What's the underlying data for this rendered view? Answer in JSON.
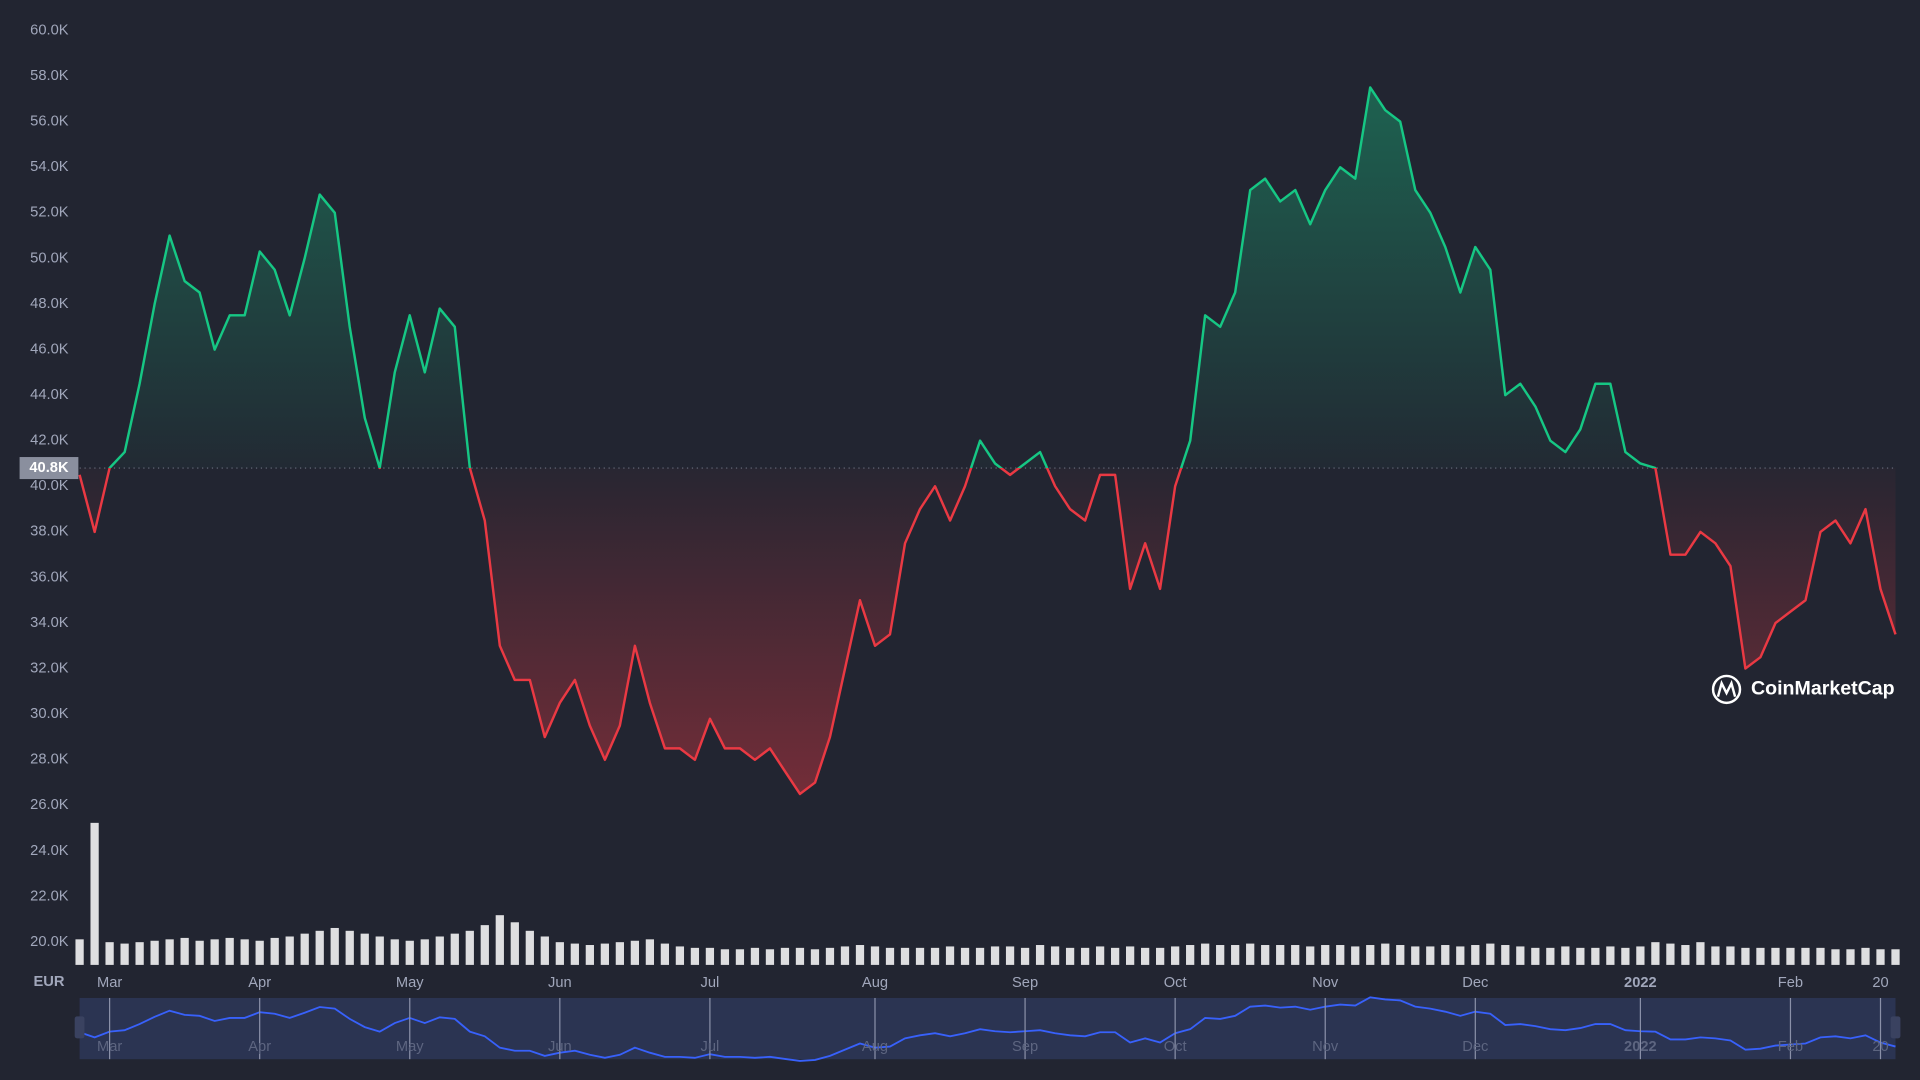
{
  "chart_data": {
    "type": "line",
    "currency": "EUR",
    "watermark": "CoinMarketCap",
    "colors": {
      "up": "#16c784",
      "down": "#ea3943",
      "volume": "#ffffff",
      "navigator": "#3861fb"
    },
    "grid": false,
    "baseline": {
      "value": 40800,
      "label": "40.8K"
    },
    "ylim": [
      19000,
      60800
    ],
    "yticks": [
      {
        "value": 20000,
        "label": "20.0K"
      },
      {
        "value": 22000,
        "label": "22.0K"
      },
      {
        "value": 24000,
        "label": "24.0K"
      },
      {
        "value": 26000,
        "label": "26.0K"
      },
      {
        "value": 28000,
        "label": "28.0K"
      },
      {
        "value": 30000,
        "label": "30.0K"
      },
      {
        "value": 32000,
        "label": "32.0K"
      },
      {
        "value": 34000,
        "label": "34.0K"
      },
      {
        "value": 36000,
        "label": "36.0K"
      },
      {
        "value": 38000,
        "label": "38.0K"
      },
      {
        "value": 40000,
        "label": "40.0K"
      },
      {
        "value": 42000,
        "label": "42.0K"
      },
      {
        "value": 44000,
        "label": "44.0K"
      },
      {
        "value": 46000,
        "label": "46.0K"
      },
      {
        "value": 48000,
        "label": "48.0K"
      },
      {
        "value": 50000,
        "label": "50.0K"
      },
      {
        "value": 52000,
        "label": "52.0K"
      },
      {
        "value": 54000,
        "label": "54.0K"
      },
      {
        "value": 56000,
        "label": "56.0K"
      },
      {
        "value": 58000,
        "label": "58.0K"
      },
      {
        "value": 60000,
        "label": "60.0K"
      }
    ],
    "y2lim": [
      0,
      100
    ],
    "categories": [
      null,
      null,
      "Mar",
      null,
      null,
      null,
      null,
      null,
      null,
      null,
      null,
      null,
      "Apr",
      null,
      null,
      null,
      null,
      null,
      null,
      null,
      null,
      null,
      "May",
      null,
      null,
      null,
      null,
      null,
      null,
      null,
      null,
      null,
      "Jun",
      null,
      null,
      null,
      null,
      null,
      null,
      null,
      null,
      null,
      "Jul",
      null,
      null,
      null,
      null,
      null,
      null,
      null,
      null,
      null,
      null,
      "Aug",
      null,
      null,
      null,
      null,
      null,
      null,
      null,
      null,
      null,
      "Sep",
      null,
      null,
      null,
      null,
      null,
      null,
      null,
      null,
      null,
      "Oct",
      null,
      null,
      null,
      null,
      null,
      null,
      null,
      null,
      null,
      "Nov",
      null,
      null,
      null,
      null,
      null,
      null,
      null,
      null,
      null,
      "Dec",
      null,
      null,
      null,
      null,
      null,
      null,
      null,
      null,
      null,
      null,
      "2022",
      null,
      null,
      null,
      null,
      null,
      null,
      null,
      null,
      null,
      "Feb",
      null,
      null,
      null,
      null,
      null,
      "20",
      null
    ],
    "values": [
      40500,
      38000,
      40800,
      41500,
      44500,
      48000,
      51000,
      49000,
      48500,
      46000,
      47500,
      47500,
      50300,
      49500,
      47500,
      50000,
      52800,
      52000,
      47000,
      43000,
      40800,
      45000,
      47500,
      45000,
      47800,
      47000,
      40800,
      38500,
      33000,
      31500,
      31500,
      29000,
      30500,
      31500,
      29500,
      28000,
      29500,
      33000,
      30500,
      28500,
      28500,
      28000,
      29800,
      28500,
      28500,
      28000,
      28500,
      27500,
      26500,
      27000,
      29000,
      32000,
      35000,
      33000,
      33500,
      37500,
      39000,
      40000,
      38500,
      40000,
      42000,
      41000,
      40500,
      41000,
      41500,
      40000,
      39000,
      38500,
      40500,
      40500,
      35500,
      37500,
      35500,
      40000,
      42000,
      47500,
      47000,
      48500,
      53000,
      53500,
      52500,
      53000,
      51500,
      53000,
      54000,
      53500,
      57500,
      56500,
      56000,
      53000,
      52000,
      50500,
      48500,
      50500,
      49500,
      44000,
      44500,
      43500,
      42000,
      41500,
      42500,
      44500,
      44500,
      41500,
      41000,
      40800,
      37000,
      37000,
      38000,
      37500,
      36500,
      32000,
      32500,
      34000,
      34500,
      35000,
      38000,
      38500,
      37500,
      39000,
      35500,
      33500
    ],
    "volume": [
      18,
      100,
      16,
      15,
      16,
      17,
      18,
      19,
      17,
      18,
      19,
      18,
      17,
      19,
      20,
      22,
      24,
      26,
      24,
      22,
      20,
      18,
      17,
      18,
      20,
      22,
      24,
      28,
      35,
      30,
      24,
      20,
      16,
      15,
      14,
      15,
      16,
      17,
      18,
      15,
      13,
      12,
      12,
      11,
      11,
      12,
      11,
      12,
      12,
      11,
      12,
      13,
      14,
      13,
      12,
      12,
      12,
      12,
      13,
      12,
      12,
      13,
      13,
      12,
      14,
      13,
      12,
      12,
      13,
      12,
      13,
      12,
      12,
      13,
      14,
      15,
      14,
      14,
      15,
      14,
      14,
      14,
      13,
      14,
      14,
      13,
      14,
      15,
      14,
      13,
      13,
      14,
      13,
      14,
      15,
      14,
      13,
      12,
      12,
      13,
      12,
      12,
      13,
      12,
      13,
      16,
      15,
      14,
      16,
      13,
      13,
      12,
      12,
      12,
      12,
      12,
      12,
      11,
      11,
      12,
      11,
      11
    ]
  }
}
